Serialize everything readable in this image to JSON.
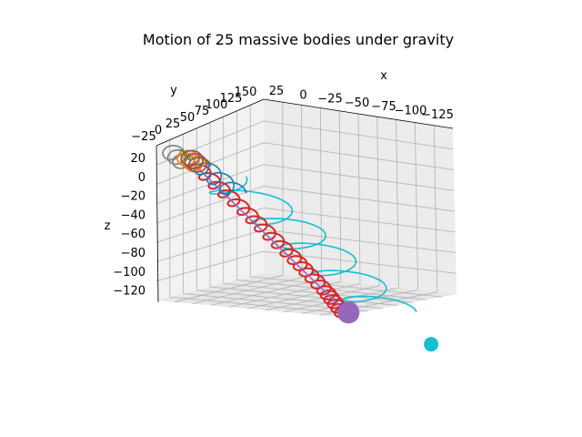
{
  "chart_data": {
    "type": "line",
    "projection": "3d",
    "title": "Motion of 25 massive bodies under gravity",
    "xlabel": "x",
    "ylabel": "y",
    "zlabel": "z",
    "x_ticks": [
      "25",
      "0",
      "−25",
      "−50",
      "−75",
      "−100",
      "−125"
    ],
    "y_ticks": [
      "−25",
      "0",
      "25",
      "50",
      "75",
      "100",
      "125",
      "150"
    ],
    "z_ticks": [
      "20",
      "0",
      "−20",
      "−40",
      "−60",
      "−80",
      "−100",
      "−120"
    ],
    "xlim": [
      30,
      -130
    ],
    "ylim": [
      -30,
      160
    ],
    "zlim": [
      25,
      -130
    ],
    "grid": true,
    "series": [
      {
        "color": "#17becf",
        "shape": "spiral",
        "points": [
          {
            "x": -5,
            "y": 10,
            "z": 5
          },
          {
            "x": -35,
            "y": 20,
            "z": -12
          },
          {
            "x": -55,
            "y": 30,
            "z": -28
          },
          {
            "x": -75,
            "y": 40,
            "z": -48
          },
          {
            "x": -95,
            "y": 55,
            "z": -66
          }
        ],
        "marker_at": {
          "x": -118,
          "y": 70,
          "z": -82
        }
      },
      {
        "color": "#d62728",
        "shape": "spiral",
        "points": [
          {
            "x": 8,
            "y": 10,
            "z": 8
          },
          {
            "x": -20,
            "y": 20,
            "z": -20
          },
          {
            "x": -45,
            "y": 30,
            "z": -48
          },
          {
            "x": -62,
            "y": 45,
            "z": -70
          },
          {
            "x": -72,
            "y": 55,
            "z": -88
          }
        ],
        "marker_at": {
          "x": -72,
          "y": 55,
          "z": -88
        }
      },
      {
        "color": "#9467bd",
        "shape": "trail",
        "points": [
          {
            "x": 8,
            "y": 10,
            "z": 8
          },
          {
            "x": -72,
            "y": 60,
            "z": -84
          }
        ],
        "marker_at": {
          "x": -74,
          "y": 60,
          "z": -84
        }
      },
      {
        "color": "#1f77b4",
        "shape": "loop",
        "points": [
          {
            "x": 5,
            "y": 10,
            "z": 10
          },
          {
            "x": -15,
            "y": 20,
            "z": -5
          }
        ],
        "marker_at": null
      },
      {
        "color": "#7f7f7f",
        "shape": "loop",
        "points": [
          {
            "x": 20,
            "y": 5,
            "z": 12
          },
          {
            "x": 12,
            "y": 5,
            "z": 5
          }
        ],
        "marker_at": null
      },
      {
        "color": "#ff7f0e",
        "shape": "loop",
        "points": [
          {
            "x": 12,
            "y": 8,
            "z": 12
          },
          {
            "x": 6,
            "y": 10,
            "z": 8
          }
        ],
        "marker_at": null
      },
      {
        "color": "#2ca02c",
        "shape": "trail",
        "points": [
          {
            "x": 14,
            "y": 8,
            "z": 18
          },
          {
            "x": 10,
            "y": 10,
            "z": 10
          }
        ],
        "marker_at": null
      },
      {
        "color": "#8c564b",
        "shape": "loop",
        "points": [
          {
            "x": 10,
            "y": 10,
            "z": 14
          },
          {
            "x": 4,
            "y": 12,
            "z": 8
          }
        ],
        "marker_at": null
      }
    ]
  }
}
